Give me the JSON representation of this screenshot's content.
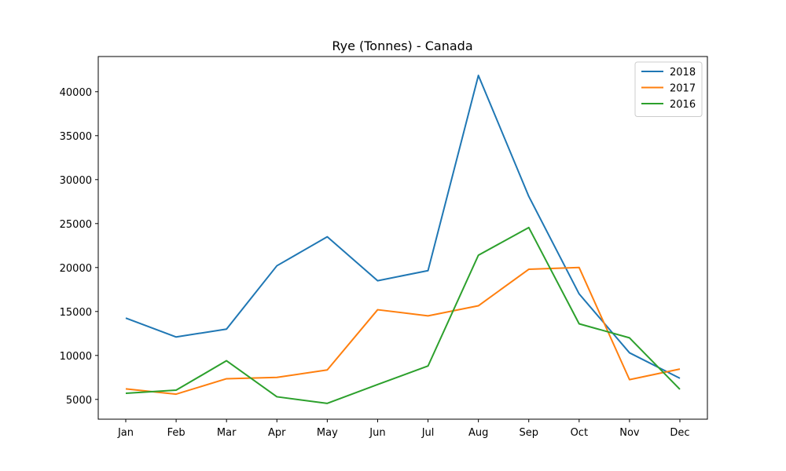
{
  "chart_data": {
    "type": "line",
    "title": "Rye (Tonnes) - Canada",
    "xlabel": "",
    "ylabel": "",
    "categories": [
      "Jan",
      "Feb",
      "Mar",
      "Apr",
      "May",
      "Jun",
      "Jul",
      "Aug",
      "Sep",
      "Oct",
      "Nov",
      "Dec"
    ],
    "y_ticks": [
      5000,
      10000,
      15000,
      20000,
      25000,
      30000,
      35000,
      40000
    ],
    "ylim": [
      2750,
      44000
    ],
    "grid": false,
    "legend_position": "top-right",
    "series": [
      {
        "name": "2018",
        "color": "#1f77b4",
        "values": [
          14250,
          12100,
          13000,
          20200,
          23500,
          18500,
          19650,
          41850,
          28100,
          17000,
          10300,
          7400
        ]
      },
      {
        "name": "2017",
        "color": "#ff7f0e",
        "values": [
          6200,
          5600,
          7350,
          7500,
          8350,
          15200,
          14500,
          15650,
          19800,
          20000,
          7250,
          8450
        ]
      },
      {
        "name": "2016",
        "color": "#2ca02c",
        "values": [
          5700,
          6050,
          9400,
          5300,
          4550,
          6700,
          8800,
          21400,
          24550,
          13600,
          12000,
          6150
        ]
      }
    ]
  }
}
